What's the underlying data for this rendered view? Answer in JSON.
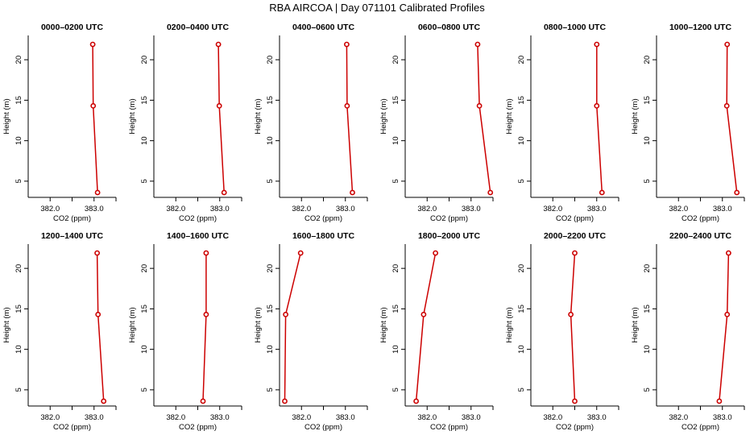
{
  "title": "RBA AIRCOA |  Day 071101  Calibrated Profiles",
  "colors": {
    "series": "#cc0000",
    "axis": "#000000",
    "background": "#ffffff"
  },
  "chart_data": {
    "type": "line",
    "layout": "2 rows x 6 panels",
    "grid": false,
    "panels": [
      {
        "title": "0000–0200 UTC",
        "xlabel": "CO2 (ppm)",
        "ylabel": "Height (m)",
        "xlim": [
          381.5,
          383.5
        ],
        "ylim": [
          3,
          23
        ],
        "xticks": [
          382.0,
          382.5,
          383.0
        ],
        "xtick_labels": [
          "382.0",
          "",
          "383.0"
        ],
        "yticks": [
          5,
          10,
          15,
          20
        ],
        "ytick_labels": [
          "5",
          "10",
          "15",
          "20"
        ],
        "series": [
          {
            "x": [
              382.97,
              382.98,
              383.08
            ],
            "y": [
              21.9,
              14.3,
              3.6
            ]
          }
        ]
      },
      {
        "title": "0200–0400 UTC",
        "xlabel": "CO2 (ppm)",
        "ylabel": "Height (m)",
        "xlim": [
          381.5,
          383.5
        ],
        "ylim": [
          3,
          23
        ],
        "xticks": [
          382.0,
          382.5,
          383.0
        ],
        "xtick_labels": [
          "382.0",
          "",
          "383.0"
        ],
        "yticks": [
          5,
          10,
          15,
          20
        ],
        "ytick_labels": [
          "5",
          "10",
          "15",
          "20"
        ],
        "series": [
          {
            "x": [
              382.97,
              382.99,
              383.1
            ],
            "y": [
              21.9,
              14.3,
              3.6
            ]
          }
        ]
      },
      {
        "title": "0400–0600 UTC",
        "xlabel": "CO2 (ppm)",
        "ylabel": "Height (m)",
        "xlim": [
          381.5,
          383.5
        ],
        "ylim": [
          3,
          23
        ],
        "xticks": [
          382.0,
          382.5,
          383.0
        ],
        "xtick_labels": [
          "382.0",
          "",
          "383.0"
        ],
        "yticks": [
          5,
          10,
          15,
          20
        ],
        "ytick_labels": [
          "5",
          "10",
          "15",
          "20"
        ],
        "series": [
          {
            "x": [
              383.03,
              383.04,
              383.16
            ],
            "y": [
              21.9,
              14.3,
              3.6
            ]
          }
        ]
      },
      {
        "title": "0600–0800 UTC",
        "xlabel": "CO2 (ppm)",
        "ylabel": "Height (m)",
        "xlim": [
          381.5,
          383.5
        ],
        "ylim": [
          3,
          23
        ],
        "xticks": [
          382.0,
          382.5,
          383.0
        ],
        "xtick_labels": [
          "382.0",
          "",
          "383.0"
        ],
        "yticks": [
          5,
          10,
          15,
          20
        ],
        "ytick_labels": [
          "5",
          "10",
          "15",
          "20"
        ],
        "series": [
          {
            "x": [
              383.15,
              383.19,
              383.44
            ],
            "y": [
              21.9,
              14.3,
              3.6
            ]
          }
        ]
      },
      {
        "title": "0800–1000 UTC",
        "xlabel": "CO2 (ppm)",
        "ylabel": "Height (m)",
        "xlim": [
          381.5,
          383.5
        ],
        "ylim": [
          3,
          23
        ],
        "xticks": [
          382.0,
          382.5,
          383.0
        ],
        "xtick_labels": [
          "382.0",
          "",
          "383.0"
        ],
        "yticks": [
          5,
          10,
          15,
          20
        ],
        "ytick_labels": [
          "5",
          "10",
          "15",
          "20"
        ],
        "series": [
          {
            "x": [
              383.0,
              383.0,
              383.12
            ],
            "y": [
              21.9,
              14.3,
              3.6
            ]
          }
        ]
      },
      {
        "title": "1000–1200 UTC",
        "xlabel": "CO2 (ppm)",
        "ylabel": "Height (m)",
        "xlim": [
          381.5,
          383.5
        ],
        "ylim": [
          3,
          23
        ],
        "xticks": [
          382.0,
          382.5,
          383.0
        ],
        "xtick_labels": [
          "382.0",
          "",
          "383.0"
        ],
        "yticks": [
          5,
          10,
          15,
          20
        ],
        "ytick_labels": [
          "5",
          "10",
          "15",
          "20"
        ],
        "series": [
          {
            "x": [
              383.11,
              383.1,
              383.33
            ],
            "y": [
              21.9,
              14.3,
              3.6
            ]
          }
        ]
      },
      {
        "title": "1200–1400 UTC",
        "xlabel": "CO2 (ppm)",
        "ylabel": "Height (m)",
        "xlim": [
          381.5,
          383.5
        ],
        "ylim": [
          3,
          23
        ],
        "xticks": [
          382.0,
          382.5,
          383.0
        ],
        "xtick_labels": [
          "382.0",
          "",
          "383.0"
        ],
        "yticks": [
          5,
          10,
          15,
          20
        ],
        "ytick_labels": [
          "5",
          "10",
          "15",
          "20"
        ],
        "series": [
          {
            "x": [
              383.07,
              383.09,
              383.22
            ],
            "y": [
              21.9,
              14.3,
              3.6
            ]
          }
        ]
      },
      {
        "title": "1400–1600 UTC",
        "xlabel": "CO2 (ppm)",
        "ylabel": "Height (m)",
        "xlim": [
          381.5,
          383.5
        ],
        "ylim": [
          3,
          23
        ],
        "xticks": [
          382.0,
          382.5,
          383.0
        ],
        "xtick_labels": [
          "382.0",
          "",
          "383.0"
        ],
        "yticks": [
          5,
          10,
          15,
          20
        ],
        "ytick_labels": [
          "5",
          "10",
          "15",
          "20"
        ],
        "series": [
          {
            "x": [
              382.69,
              382.69,
              382.62
            ],
            "y": [
              21.9,
              14.3,
              3.6
            ]
          }
        ]
      },
      {
        "title": "1600–1800 UTC",
        "xlabel": "CO2 (ppm)",
        "ylabel": "Height (m)",
        "xlim": [
          381.5,
          383.5
        ],
        "ylim": [
          3,
          23
        ],
        "xticks": [
          382.0,
          382.5,
          383.0
        ],
        "xtick_labels": [
          "382.0",
          "",
          "383.0"
        ],
        "yticks": [
          5,
          10,
          15,
          20
        ],
        "ytick_labels": [
          "5",
          "10",
          "15",
          "20"
        ],
        "series": [
          {
            "x": [
              381.98,
              381.64,
              381.62
            ],
            "y": [
              21.9,
              14.3,
              3.6
            ]
          }
        ]
      },
      {
        "title": "1800–2000 UTC",
        "xlabel": "CO2 (ppm)",
        "ylabel": "Height (m)",
        "xlim": [
          381.5,
          383.5
        ],
        "ylim": [
          3,
          23
        ],
        "xticks": [
          382.0,
          382.5,
          383.0
        ],
        "xtick_labels": [
          "382.0",
          "",
          "383.0"
        ],
        "yticks": [
          5,
          10,
          15,
          20
        ],
        "ytick_labels": [
          "5",
          "10",
          "15",
          "20"
        ],
        "series": [
          {
            "x": [
              382.19,
              381.92,
              381.75
            ],
            "y": [
              21.9,
              14.3,
              3.6
            ]
          }
        ]
      },
      {
        "title": "2000–2200 UTC",
        "xlabel": "CO2 (ppm)",
        "ylabel": "Height (m)",
        "xlim": [
          381.5,
          383.5
        ],
        "ylim": [
          3,
          23
        ],
        "xticks": [
          382.0,
          382.5,
          383.0
        ],
        "xtick_labels": [
          "382.0",
          "",
          "383.0"
        ],
        "yticks": [
          5,
          10,
          15,
          20
        ],
        "ytick_labels": [
          "5",
          "10",
          "15",
          "20"
        ],
        "series": [
          {
            "x": [
              382.5,
              382.41,
              382.5
            ],
            "y": [
              21.9,
              14.3,
              3.6
            ]
          }
        ]
      },
      {
        "title": "2200–2400 UTC",
        "xlabel": "CO2 (ppm)",
        "ylabel": "Height (m)",
        "xlim": [
          381.5,
          383.5
        ],
        "ylim": [
          3,
          23
        ],
        "xticks": [
          382.0,
          382.5,
          383.0
        ],
        "xtick_labels": [
          "382.0",
          "",
          "383.0"
        ],
        "yticks": [
          5,
          10,
          15,
          20
        ],
        "ytick_labels": [
          "5",
          "10",
          "15",
          "20"
        ],
        "series": [
          {
            "x": [
              383.14,
              383.11,
              382.93
            ],
            "y": [
              21.9,
              14.3,
              3.6
            ]
          }
        ]
      }
    ]
  }
}
